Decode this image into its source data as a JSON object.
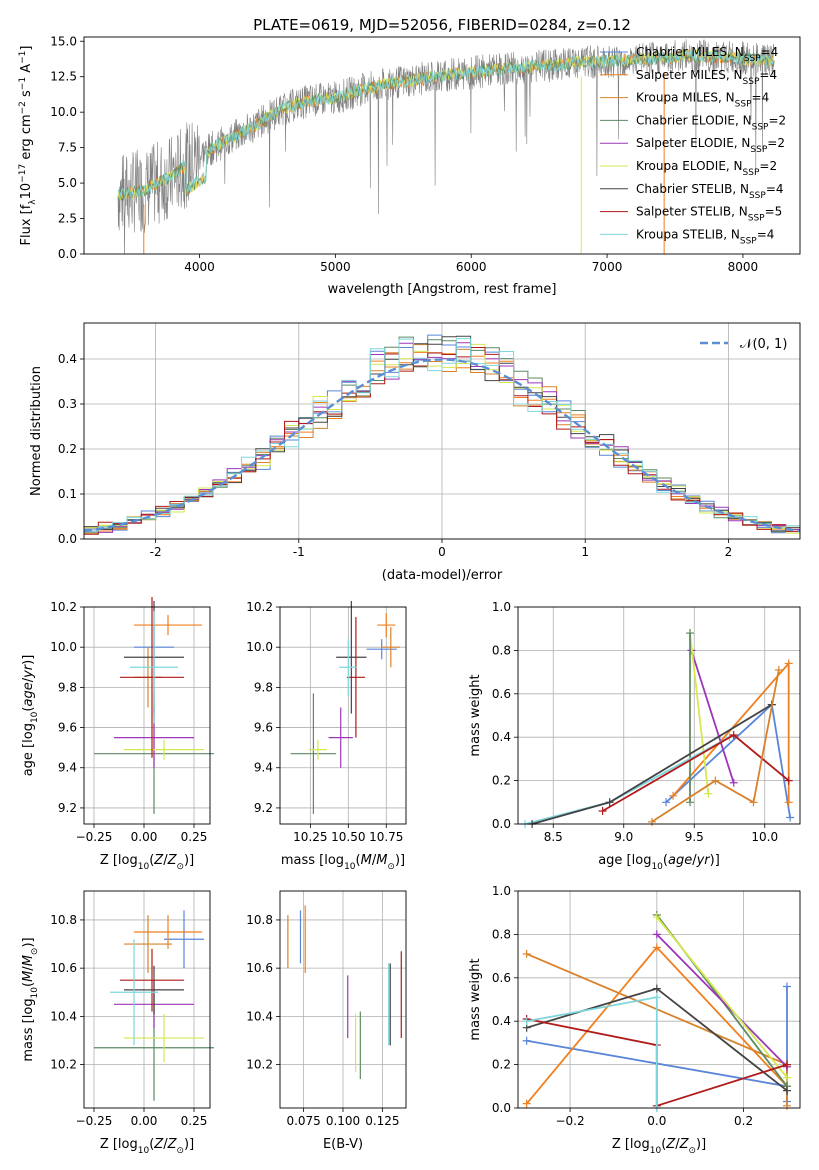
{
  "figure_title": "PLATE=0619, MJD=52056, FIBERID=0284, z=0.12",
  "colors": {
    "Chabrier MILES": "#5a86d8",
    "Salpeter MILES": "#f07f1f",
    "Kroupa MILES": "#d9822b",
    "Chabrier ELODIE": "#5d8a63",
    "Salpeter ELODIE": "#9b37b8",
    "Kroupa ELODIE": "#d6e84f",
    "Chabrier STELIB": "#444444",
    "Salpeter STELIB": "#b01a1a",
    "Kroupa STELIB": "#7fd6dc",
    "normal_curve": "#5b8fd4",
    "data_spectrum": "#808080"
  },
  "chart_data": [
    {
      "id": "spectrum",
      "type": "line",
      "title": "PLATE=0619, MJD=52056, FIBERID=0284, z=0.12",
      "xlabel": "wavelength [Angstrom, rest frame]",
      "ylabel": "Flux [f_λ 10^-17 erg cm^-2 s^-1 A^-1]",
      "xlim": [
        3150,
        8420
      ],
      "ylim": [
        0,
        15.3
      ],
      "xticks": [
        4000,
        5000,
        6000,
        7000,
        8000
      ],
      "yticks": [
        0.0,
        2.5,
        5.0,
        7.5,
        10.0,
        12.5,
        15.0
      ],
      "ytick_labels": [
        "0.0",
        "2.5",
        "5.0",
        "7.5",
        "10.0",
        "12.5",
        "15.0"
      ],
      "legend_position": "right",
      "legend": [
        {
          "name": "Chabrier MILES",
          "nssp": "4"
        },
        {
          "name": "Salpeter MILES",
          "nssp": "4"
        },
        {
          "name": "Kroupa MILES",
          "nssp": "4"
        },
        {
          "name": "Chabrier ELODIE",
          "nssp": "2"
        },
        {
          "name": "Salpeter ELODIE",
          "nssp": "2"
        },
        {
          "name": "Kroupa ELODIE",
          "nssp": "2"
        },
        {
          "name": "Chabrier STELIB",
          "nssp": "4"
        },
        {
          "name": "Salpeter STELIB",
          "nssp": "5"
        },
        {
          "name": "Kroupa STELIB",
          "nssp": "4"
        }
      ],
      "continuum": {
        "x": [
          3400,
          3600,
          3800,
          4000,
          4200,
          4400,
          4600,
          4800,
          5000,
          5200,
          5400,
          5600,
          5800,
          6000,
          6200,
          6400,
          6600,
          6800,
          7000,
          7200,
          7400,
          7600,
          7800,
          8000,
          8200
        ],
        "y": [
          4.2,
          4.5,
          5.5,
          7.0,
          8.0,
          9.0,
          10.2,
          10.8,
          11.0,
          11.6,
          12.0,
          12.3,
          12.6,
          12.8,
          13.0,
          13.2,
          13.3,
          13.5,
          13.6,
          13.7,
          13.8,
          14.0,
          13.9,
          13.8,
          13.6
        ]
      }
    },
    {
      "id": "residuals",
      "type": "line",
      "xlabel": "(data-model)/error",
      "ylabel": "Normed distribution",
      "xlim": [
        -2.5,
        2.5
      ],
      "ylim": [
        0,
        0.48
      ],
      "xticks": [
        -2,
        -1,
        0,
        1,
        2
      ],
      "yticks": [
        0.0,
        0.1,
        0.2,
        0.3,
        0.4
      ],
      "ytick_labels": [
        "0.0",
        "0.1",
        "0.2",
        "0.3",
        "0.4"
      ],
      "legend_label": "𝒩(0, 1)",
      "legend_position": "top-right",
      "curve": "normal distribution, mean 0, sigma 1"
    },
    {
      "id": "age_vs_Z",
      "type": "scatter",
      "xlabel": "Z [log10(Z/Z⊙)]",
      "ylabel": "age  [log10(age/yr)]",
      "xlim": [
        -0.3,
        0.33
      ],
      "ylim": [
        9.12,
        10.2
      ],
      "xticks": [
        -0.25,
        0.0,
        0.25
      ],
      "xtick_labels": [
        "−0.25",
        "0.00",
        "0.25"
      ],
      "yticks": [
        9.2,
        9.4,
        9.6,
        9.8,
        10.0,
        10.2
      ],
      "ytick_labels": [
        "9.2",
        "9.4",
        "9.6",
        "9.8",
        "10.0",
        "10.2"
      ],
      "points": [
        {
          "series": "Chabrier MILES",
          "x": 0.05,
          "y": 10.0,
          "xerr": 0.1,
          "yerr": 0.1
        },
        {
          "series": "Salpeter MILES",
          "x": 0.12,
          "y": 10.11,
          "xerr": 0.17,
          "yerr": 0.05
        },
        {
          "series": "Kroupa MILES",
          "x": 0.02,
          "y": 9.85,
          "xerr": 0.07,
          "yerr": 0.15
        },
        {
          "series": "Chabrier ELODIE",
          "x": 0.05,
          "y": 9.47,
          "xerr": 0.3,
          "yerr": 0.3
        },
        {
          "series": "Salpeter ELODIE",
          "x": 0.05,
          "y": 9.55,
          "xerr": 0.2,
          "yerr": 0.15
        },
        {
          "series": "Kroupa ELODIE",
          "x": 0.1,
          "y": 9.49,
          "xerr": 0.2,
          "yerr": 0.05
        },
        {
          "series": "Chabrier STELIB",
          "x": 0.05,
          "y": 9.95,
          "xerr": 0.15,
          "yerr": 0.28
        },
        {
          "series": "Salpeter STELIB",
          "x": 0.04,
          "y": 9.85,
          "xerr": 0.16,
          "yerr": 0.4
        },
        {
          "series": "Kroupa STELIB",
          "x": 0.05,
          "y": 9.9,
          "xerr": 0.12,
          "yerr": 0.28
        }
      ]
    },
    {
      "id": "age_vs_mass",
      "type": "scatter",
      "xlabel": "mass [log10(M/M⊙)]",
      "xlim": [
        10.05,
        10.88
      ],
      "ylim": [
        9.12,
        10.2
      ],
      "xticks": [
        10.25,
        10.5,
        10.75
      ],
      "xtick_labels": [
        "10.25",
        "10.50",
        "10.75"
      ],
      "yticks": [
        9.2,
        9.4,
        9.6,
        9.8,
        10.0,
        10.2
      ],
      "ytick_labels": [
        "9.2",
        "9.4",
        "9.6",
        "9.8",
        "10.0",
        "10.2"
      ],
      "points": [
        {
          "series": "Chabrier MILES",
          "x": 10.72,
          "y": 9.99,
          "xerr": 0.1,
          "yerr": 0.05
        },
        {
          "series": "Salpeter MILES",
          "x": 10.75,
          "y": 10.11,
          "xerr": 0.06,
          "yerr": 0.06
        },
        {
          "series": "Kroupa MILES",
          "x": 10.78,
          "y": 10.0,
          "xerr": 0.06,
          "yerr": 0.1
        },
        {
          "series": "Chabrier ELODIE",
          "x": 10.27,
          "y": 9.47,
          "xerr": 0.15,
          "yerr": 0.3
        },
        {
          "series": "Salpeter ELODIE",
          "x": 10.45,
          "y": 9.55,
          "xerr": 0.08,
          "yerr": 0.15
        },
        {
          "series": "Kroupa ELODIE",
          "x": 10.3,
          "y": 9.49,
          "xerr": 0.06,
          "yerr": 0.05
        },
        {
          "series": "Chabrier STELIB",
          "x": 10.52,
          "y": 9.95,
          "xerr": 0.1,
          "yerr": 0.28
        },
        {
          "series": "Salpeter STELIB",
          "x": 10.55,
          "y": 9.85,
          "xerr": 0.06,
          "yerr": 0.3
        },
        {
          "series": "Kroupa STELIB",
          "x": 10.5,
          "y": 9.9,
          "xerr": 0.06,
          "yerr": 0.14
        }
      ]
    },
    {
      "id": "weight_vs_age",
      "type": "line",
      "xlabel": "age  [log10(age/yr)]",
      "ylabel": "mass weight",
      "xlim": [
        8.25,
        10.25
      ],
      "ylim": [
        0,
        1.0
      ],
      "xticks": [
        8.5,
        9.0,
        9.5,
        10.0
      ],
      "xtick_labels": [
        "8.5",
        "9.0",
        "9.5",
        "10.0"
      ],
      "yticks": [
        0.0,
        0.2,
        0.4,
        0.6,
        0.8,
        1.0
      ],
      "ytick_labels": [
        "0.0",
        "0.2",
        "0.4",
        "0.6",
        "0.8",
        "1.0"
      ],
      "series": [
        {
          "name": "Chabrier MILES",
          "x": [
            9.3,
            10.05,
            10.18
          ],
          "y": [
            0.1,
            0.55,
            0.03
          ]
        },
        {
          "name": "Salpeter MILES",
          "x": [
            9.35,
            10.17,
            10.17
          ],
          "y": [
            0.13,
            0.74,
            0.1
          ]
        },
        {
          "name": "Salpeter ELODIE",
          "x": [
            9.48,
            9.78
          ],
          "y": [
            0.8,
            0.19
          ]
        },
        {
          "name": "Kroupa ELODIE",
          "x": [
            9.47,
            9.6
          ],
          "y": [
            0.88,
            0.14
          ]
        },
        {
          "name": "Chabrier ELODIE",
          "x": [
            9.47,
            9.47
          ],
          "y": [
            0.88,
            0.1
          ]
        },
        {
          "name": "Kroupa STELIB",
          "x": [
            8.3,
            8.9,
            9.75
          ],
          "y": [
            0.0,
            0.1,
            0.4
          ]
        },
        {
          "name": "Chabrier STELIB",
          "x": [
            8.35,
            8.9,
            10.05
          ],
          "y": [
            0.0,
            0.1,
            0.55
          ]
        },
        {
          "name": "Salpeter STELIB",
          "x": [
            8.85,
            9.78,
            10.17
          ],
          "y": [
            0.06,
            0.41,
            0.2
          ]
        },
        {
          "name": "Kroupa MILES",
          "x": [
            9.2,
            9.65,
            9.92,
            10.1
          ],
          "y": [
            0.01,
            0.2,
            0.1,
            0.71
          ]
        }
      ]
    },
    {
      "id": "mass_vs_Z",
      "type": "scatter",
      "xlabel": "Z [log10(Z/Z⊙)]",
      "ylabel": "mass [log10(M/M⊙)]",
      "xlim": [
        -0.3,
        0.33
      ],
      "ylim": [
        10.02,
        10.92
      ],
      "xticks": [
        -0.25,
        0.0,
        0.25
      ],
      "xtick_labels": [
        "−0.25",
        "0.00",
        "0.25"
      ],
      "yticks": [
        10.2,
        10.4,
        10.6,
        10.8
      ],
      "ytick_labels": [
        "10.2",
        "10.4",
        "10.6",
        "10.8"
      ],
      "points": [
        {
          "series": "Chabrier MILES",
          "x": 0.2,
          "y": 10.72,
          "xerr": 0.1,
          "yerr": 0.12
        },
        {
          "series": "Salpeter MILES",
          "x": 0.12,
          "y": 10.75,
          "xerr": 0.17,
          "yerr": 0.07
        },
        {
          "series": "Kroupa MILES",
          "x": 0.02,
          "y": 10.7,
          "xerr": 0.12,
          "yerr": 0.12
        },
        {
          "series": "Chabrier ELODIE",
          "x": 0.05,
          "y": 10.27,
          "xerr": 0.3,
          "yerr": 0.22
        },
        {
          "series": "Salpeter ELODIE",
          "x": 0.05,
          "y": 10.45,
          "xerr": 0.2,
          "yerr": 0.1
        },
        {
          "series": "Kroupa ELODIE",
          "x": 0.1,
          "y": 10.31,
          "xerr": 0.2,
          "yerr": 0.1
        },
        {
          "series": "Chabrier STELIB",
          "x": 0.05,
          "y": 10.51,
          "xerr": 0.15,
          "yerr": 0.1
        },
        {
          "series": "Salpeter STELIB",
          "x": 0.04,
          "y": 10.55,
          "xerr": 0.16,
          "yerr": 0.13
        },
        {
          "series": "Kroupa STELIB",
          "x": -0.05,
          "y": 10.5,
          "xerr": 0.12,
          "yerr": 0.22
        }
      ]
    },
    {
      "id": "mass_vs_ebv",
      "type": "scatter",
      "xlabel": "E(B-V)",
      "xlim": [
        0.06,
        0.14
      ],
      "ylim": [
        10.02,
        10.92
      ],
      "xticks": [
        0.075,
        0.1,
        0.125
      ],
      "xtick_labels": [
        "0.075",
        "0.100",
        "0.125"
      ],
      "yticks": [
        10.2,
        10.4,
        10.6,
        10.8
      ],
      "ytick_labels": [
        "10.2",
        "10.4",
        "10.6",
        "10.8"
      ],
      "points": [
        {
          "series": "Kroupa MILES",
          "x": 0.065,
          "y": 10.71,
          "yerr": 0.11
        },
        {
          "series": "Chabrier MILES",
          "x": 0.073,
          "y": 10.73,
          "yerr": 0.11
        },
        {
          "series": "Salpeter MILES",
          "x": 0.076,
          "y": 10.72,
          "yerr": 0.14
        },
        {
          "series": "Salpeter ELODIE",
          "x": 0.103,
          "y": 10.44,
          "yerr": 0.13
        },
        {
          "series": "Kroupa ELODIE",
          "x": 0.108,
          "y": 10.29,
          "yerr": 0.12
        },
        {
          "series": "Chabrier ELODIE",
          "x": 0.111,
          "y": 10.28,
          "yerr": 0.14
        },
        {
          "series": "Chabrier STELIB",
          "x": 0.13,
          "y": 10.45,
          "yerr": 0.17
        },
        {
          "series": "Kroupa STELIB",
          "x": 0.129,
          "y": 10.45,
          "yerr": 0.17
        },
        {
          "series": "Salpeter STELIB",
          "x": 0.137,
          "y": 10.49,
          "yerr": 0.18
        }
      ]
    },
    {
      "id": "weight_vs_Z",
      "type": "line",
      "xlabel": "Z [log10(Z/Z⊙)]",
      "ylabel": "mass weight",
      "xlim": [
        -0.32,
        0.33
      ],
      "ylim": [
        0,
        1.0
      ],
      "xticks": [
        -0.2,
        0.0,
        0.2
      ],
      "xtick_labels": [
        "−0.2",
        "0.0",
        "0.2"
      ],
      "yticks": [
        0.0,
        0.2,
        0.4,
        0.6,
        0.8,
        1.0
      ],
      "ytick_labels": [
        "0.0",
        "0.2",
        "0.4",
        "0.6",
        "0.8",
        "1.0"
      ],
      "series": [
        {
          "name": "Chabrier MILES",
          "x": [
            -0.3,
            0.3,
            0.3,
            0.3
          ],
          "y": [
            0.31,
            0.1,
            0.56,
            0.03
          ]
        },
        {
          "name": "Salpeter MILES",
          "x": [
            -0.3,
            0.0,
            0.3
          ],
          "y": [
            0.02,
            0.74,
            0.1
          ]
        },
        {
          "name": "Kroupa MILES",
          "x": [
            -0.3,
            0.3,
            0.3
          ],
          "y": [
            0.71,
            0.2,
            0.01
          ]
        },
        {
          "name": "Chabrier ELODIE",
          "x": [
            0.0,
            0.3
          ],
          "y": [
            0.89,
            0.1
          ]
        },
        {
          "name": "Salpeter ELODIE",
          "x": [
            0.0,
            0.3
          ],
          "y": [
            0.8,
            0.19
          ]
        },
        {
          "name": "Kroupa ELODIE",
          "x": [
            0.0,
            0.3
          ],
          "y": [
            0.88,
            0.14
          ]
        },
        {
          "name": "Chabrier STELIB",
          "x": [
            -0.3,
            0.0,
            0.3
          ],
          "y": [
            0.37,
            0.55,
            0.08
          ]
        },
        {
          "name": "Salpeter STELIB",
          "x": [
            -0.3,
            0.0,
            0.0,
            0.3
          ],
          "y": [
            0.41,
            0.29,
            0.01,
            0.2
          ]
        },
        {
          "name": "Kroupa STELIB",
          "x": [
            -0.3,
            0.0,
            0.0
          ],
          "y": [
            0.4,
            0.51,
            0.0
          ]
        }
      ]
    }
  ]
}
